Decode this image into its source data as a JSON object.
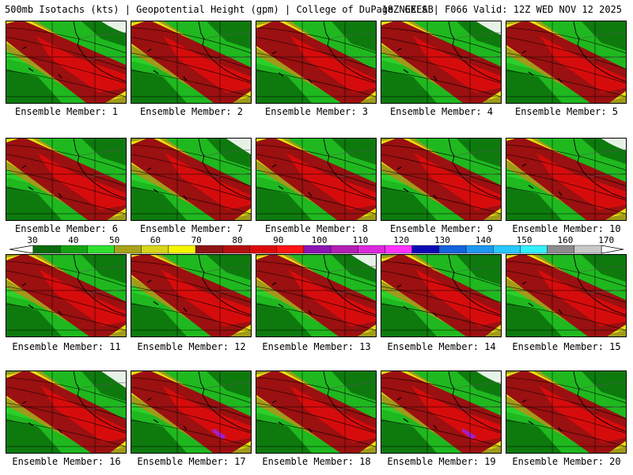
{
  "header": {
    "left_text": "500mb Isotachs (kts) | Geopotential Height (gpm) | College of DuPage NEXLAB",
    "right_text": "18Z GEFS | F066 Valid: 12Z WED NOV 12 2025"
  },
  "colorbar": {
    "tick_labels": [
      "30",
      "40",
      "50",
      "60",
      "70",
      "80",
      "90",
      "100",
      "110",
      "120",
      "130",
      "140",
      "150",
      "160",
      "170"
    ],
    "colors": [
      "#0a6b0a",
      "#13a313",
      "#2fe02f",
      "#a8a21a",
      "#d8d41a",
      "#f5f500",
      "#8c1414",
      "#b40f0f",
      "#dc0a0a",
      "#ff1414",
      "#8c14b4",
      "#b41eb4",
      "#dc28dc",
      "#ff32ff",
      "#0a0ab4",
      "#1464dc",
      "#1e96f0",
      "#28c8ff",
      "#32f0ff",
      "#8c8c8c",
      "#c8c8c8"
    ]
  },
  "colors": {
    "land_bg": "#bfbfbf",
    "coast": "#000000",
    "green_dark": "#0e7a0e",
    "green_mid": "#1fb81f",
    "green_light": "#33e033",
    "olive": "#a09a1a",
    "yellow": "#e6e20e",
    "red_dark": "#9b1010",
    "red": "#e00c0c",
    "purple": "#a020c8"
  },
  "panels": [
    {
      "label": "Ensemble Member: 1"
    },
    {
      "label": "Ensemble Member: 2"
    },
    {
      "label": "Ensemble Member: 3"
    },
    {
      "label": "Ensemble Member: 4"
    },
    {
      "label": "Ensemble Member: 5"
    },
    {
      "label": "Ensemble Member: 6"
    },
    {
      "label": "Ensemble Member: 7"
    },
    {
      "label": "Ensemble Member: 8"
    },
    {
      "label": "Ensemble Member: 9"
    },
    {
      "label": "Ensemble Member: 10"
    },
    {
      "label": "Ensemble Member: 11"
    },
    {
      "label": "Ensemble Member: 12"
    },
    {
      "label": "Ensemble Member: 13"
    },
    {
      "label": "Ensemble Member: 14"
    },
    {
      "label": "Ensemble Member: 15"
    },
    {
      "label": "Ensemble Member: 16"
    },
    {
      "label": "Ensemble Member: 17"
    },
    {
      "label": "Ensemble Member: 18"
    },
    {
      "label": "Ensemble Member: 19"
    },
    {
      "label": "Ensemble Member: 20"
    }
  ]
}
